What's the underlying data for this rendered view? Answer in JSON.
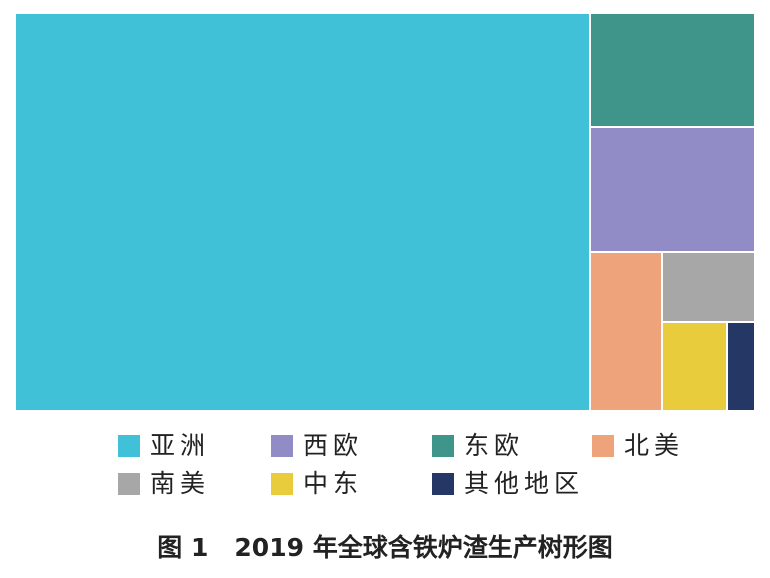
{
  "chart_data": {
    "type": "treemap",
    "title": "2019 年全球含铁炉渣生产树形图",
    "figure_label": "图 1",
    "series": [
      {
        "name": "亚洲",
        "color": "#41C1D8"
      },
      {
        "name": "东欧",
        "color": "#40958B"
      },
      {
        "name": "西欧",
        "color": "#928CC6"
      },
      {
        "name": "北美",
        "color": "#EEA37A"
      },
      {
        "name": "南美",
        "color": "#A7A7A7"
      },
      {
        "name": "中东",
        "color": "#E8CC3C"
      },
      {
        "name": "其他地区",
        "color": "#253865"
      }
    ],
    "legend": [
      {
        "name": "亚洲",
        "color": "#41C1D8"
      },
      {
        "name": "西欧",
        "color": "#928CC6"
      },
      {
        "name": "东欧",
        "color": "#40958B"
      },
      {
        "name": "北美",
        "color": "#EEA37A"
      },
      {
        "name": "南美",
        "color": "#A7A7A7"
      },
      {
        "name": "中东",
        "color": "#E8CC3C"
      },
      {
        "name": "其他地区",
        "color": "#253865"
      }
    ]
  }
}
